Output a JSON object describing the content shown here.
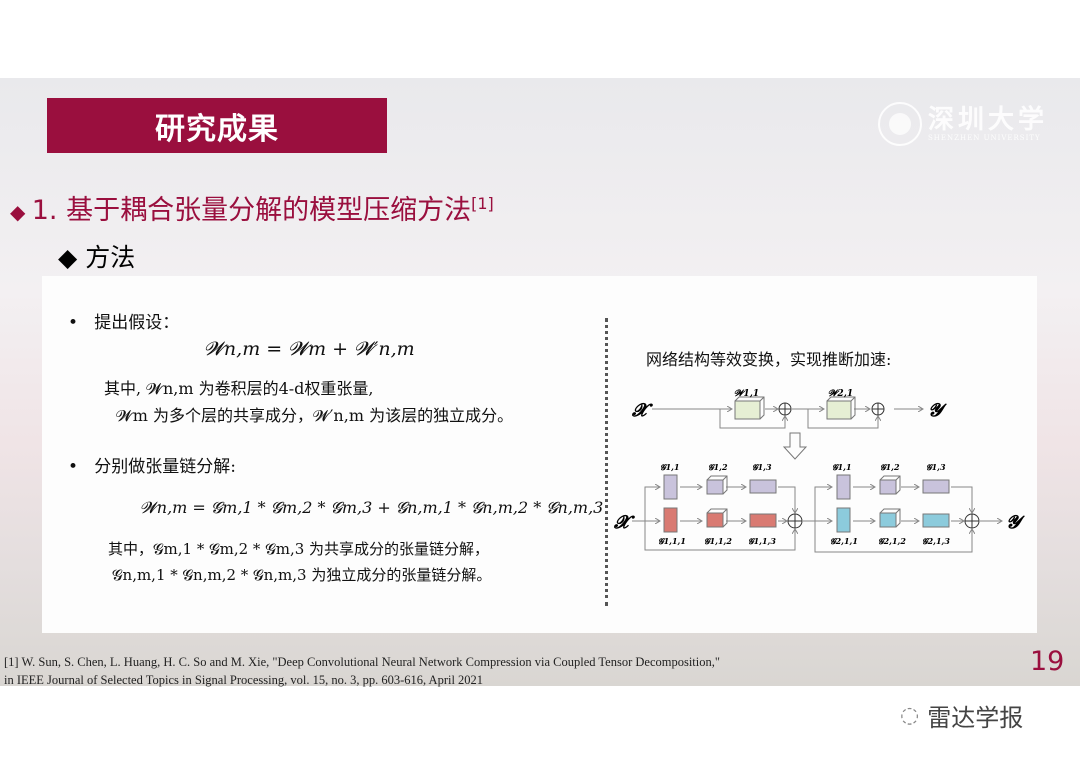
{
  "slide": {
    "section_title": "研究成果",
    "logo": {
      "cn": "深圳大学",
      "en": "SHENZHEN UNIVERSITY"
    },
    "heading": "1. 基于耦合张量分解的模型压缩方法",
    "heading_ref": "[1]",
    "subheading": "方法",
    "page_number": "19"
  },
  "left": {
    "bullet1": "提出假设：",
    "eq1": "𝓦n,m = 𝓦m + 𝓦′n,m",
    "line1": "其中, 𝓦n,m 为卷积层的4-d权重张量,",
    "line2": "𝓦m 为多个层的共享成分，𝓦′n,m 为该层的独立成分。",
    "bullet2": "分别做张量链分解:",
    "eq2": "𝓦n,m = 𝓖m,1 * 𝓖m,2 * 𝓖m,3 + 𝓖n,m,1 * 𝓖n,m,2 * 𝓖n,m,3",
    "line3": "其中，𝓖m,1 * 𝓖m,2 * 𝓖m,3 为共享成分的张量链分解，",
    "line4": "𝓖n,m,1 * 𝓖n,m,2 * 𝓖n,m,3 为独立成分的张量链分解。"
  },
  "right": {
    "caption": "网络结构等效变换，实现推断加速:",
    "diagram": {
      "input": "𝓧",
      "output": "𝓨",
      "top_labels": [
        "𝓦1,1",
        "𝓦2,1"
      ],
      "shared_labels": [
        "𝓖1,1",
        "𝓖1,2",
        "𝓖1,3"
      ],
      "branch1_labels": [
        "𝓖1,1,1",
        "𝓖1,1,2",
        "𝓖1,1,3"
      ],
      "branch2_labels": [
        "𝓖2,1,1",
        "𝓖2,1,2",
        "𝓖2,1,3"
      ],
      "colors": {
        "top": "#e6efd4",
        "shared": "#c9c3dc",
        "branch1": "#d97a72",
        "branch2": "#8ccbdc"
      }
    }
  },
  "reference": "[1] W. Sun, S. Chen, L. Huang, H. C. So and M. Xie, \"Deep Convolutional Neural Network Compression via Coupled Tensor Decomposition,\" in IEEE Journal of Selected Topics in Signal Processing, vol. 15, no. 3, pp. 603-616, April 2021",
  "watermark": "雷达学报",
  "colors": {
    "accent": "#9a0f3e"
  }
}
